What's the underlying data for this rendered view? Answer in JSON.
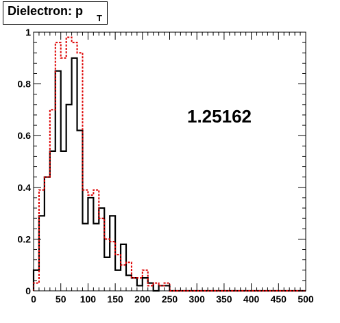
{
  "title": {
    "main": "Dielectron: p",
    "sub": "T"
  },
  "annotation": "1.25162",
  "colors": {
    "series_black": "#000000",
    "series_red": "#dd0000",
    "frame": "#000000"
  },
  "chart_data": {
    "type": "histogram",
    "bin_width": 10,
    "xlim": [
      0,
      500
    ],
    "ylim": [
      0,
      1.0
    ],
    "xticks": [
      "0",
      "50",
      "100",
      "150",
      "200",
      "250",
      "300",
      "350",
      "400",
      "450",
      "500"
    ],
    "yticks": [
      "0",
      "0.2",
      "0.4",
      "0.6",
      "0.8",
      "1"
    ],
    "xtick_values": [
      0,
      50,
      100,
      150,
      200,
      250,
      300,
      350,
      400,
      450,
      500
    ],
    "ytick_values": [
      0,
      0.2,
      0.4,
      0.6,
      0.8,
      1.0
    ],
    "series": [
      {
        "style": "solid",
        "color": "#000000",
        "values": [
          0.08,
          0.29,
          0.44,
          0.54,
          0.85,
          0.54,
          0.72,
          0.9,
          0.62,
          0.26,
          0.36,
          0.26,
          0.32,
          0.13,
          0.29,
          0.08,
          0.18,
          0.06,
          0.05,
          0.02,
          0.05,
          0.03,
          0.0,
          0.02,
          0.02,
          0.0,
          0.0,
          0.0,
          0.0,
          0.0,
          0.0,
          0.0,
          0.0,
          0.0,
          0.0,
          0.0,
          0.0,
          0.0,
          0.0,
          0.0,
          0.0,
          0.0,
          0.0,
          0.0,
          0.0,
          0.0,
          0.0,
          0.0,
          0.0,
          0.0
        ]
      },
      {
        "style": "dashed",
        "color": "#dd0000",
        "values": [
          0.03,
          0.39,
          0.44,
          0.7,
          0.96,
          0.9,
          0.98,
          0.96,
          0.92,
          0.39,
          0.37,
          0.39,
          0.28,
          0.2,
          0.19,
          0.14,
          0.1,
          0.11,
          0.05,
          0.05,
          0.08,
          0.02,
          0.03,
          0.02,
          0.03,
          0.0,
          0.0,
          0.0,
          0.0,
          0.0,
          0.0,
          0.0,
          0.0,
          0.0,
          0.0,
          0.0,
          0.0,
          0.0,
          0.0,
          0.0,
          0.0,
          0.0,
          0.0,
          0.0,
          0.0,
          0.0,
          0.0,
          0.0,
          0.0,
          0.0
        ]
      }
    ]
  }
}
